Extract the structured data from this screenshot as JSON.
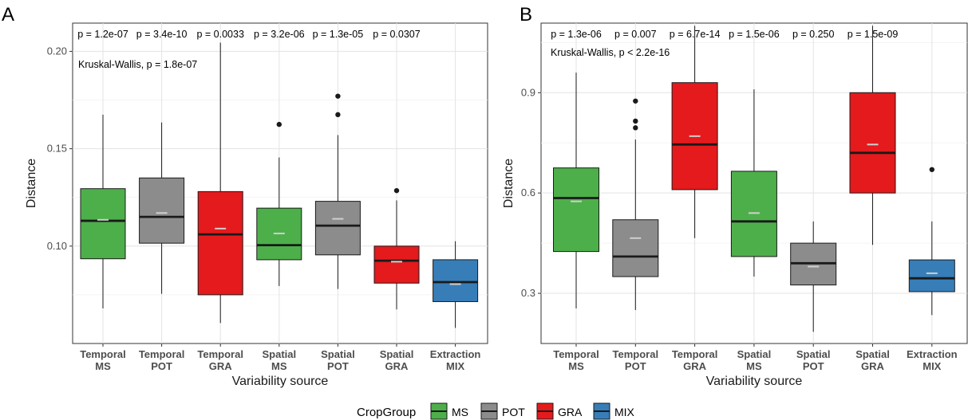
{
  "chart_data": [
    {
      "panel": "A",
      "type": "boxplot",
      "xlabel": "Variability source",
      "ylabel": "Distance",
      "ylim": [
        0.05,
        0.2145
      ],
      "yticks": [
        0.1,
        0.15,
        0.2
      ],
      "ytick_labels": [
        "0.10",
        "0.15",
        "0.20"
      ],
      "annotation": "Kruskal-Wallis, p = 1.8e-07",
      "categories": [
        {
          "line1": "Temporal",
          "line2": "MS",
          "group": "MS",
          "pvalue": "p = 1.2e-07",
          "whisker_low": 0.068,
          "q1": 0.0935,
          "median": 0.113,
          "q3": 0.1295,
          "whisker_high": 0.1675,
          "mean": 0.1135,
          "outliers": []
        },
        {
          "line1": "Temporal",
          "line2": "POT",
          "group": "POT",
          "pvalue": "p = 3.4e-10",
          "whisker_low": 0.0755,
          "q1": 0.1015,
          "median": 0.115,
          "q3": 0.135,
          "whisker_high": 0.1635,
          "mean": 0.117,
          "outliers": []
        },
        {
          "line1": "Temporal",
          "line2": "GRA",
          "group": "GRA",
          "pvalue": "p = 0.0033",
          "whisker_low": 0.0605,
          "q1": 0.075,
          "median": 0.106,
          "q3": 0.128,
          "whisker_high": 0.2045,
          "mean": 0.109,
          "outliers": []
        },
        {
          "line1": "Spatial",
          "line2": "MS",
          "group": "MS",
          "pvalue": "p = 3.2e-06",
          "whisker_low": 0.0795,
          "q1": 0.093,
          "median": 0.1005,
          "q3": 0.1195,
          "whisker_high": 0.1455,
          "mean": 0.1065,
          "outliers": [
            0.1625
          ]
        },
        {
          "line1": "Spatial",
          "line2": "POT",
          "group": "POT",
          "pvalue": "p = 1.3e-05",
          "whisker_low": 0.078,
          "q1": 0.0955,
          "median": 0.1105,
          "q3": 0.123,
          "whisker_high": 0.157,
          "mean": 0.114,
          "outliers": [
            0.1675,
            0.177
          ]
        },
        {
          "line1": "Spatial",
          "line2": "GRA",
          "group": "GRA",
          "pvalue": "p = 0.0307",
          "whisker_low": 0.0675,
          "q1": 0.081,
          "median": 0.0925,
          "q3": 0.1,
          "whisker_high": 0.1235,
          "mean": 0.092,
          "outliers": [
            0.1285
          ]
        },
        {
          "line1": "Extraction",
          "line2": "MIX",
          "group": "MIX",
          "pvalue": "",
          "whisker_low": 0.058,
          "q1": 0.0715,
          "median": 0.0815,
          "q3": 0.093,
          "whisker_high": 0.1025,
          "mean": 0.0805,
          "outliers": []
        }
      ]
    },
    {
      "panel": "B",
      "type": "boxplot",
      "xlabel": "Variability source",
      "ylabel": "Distance",
      "ylim": [
        0.15,
        1.108
      ],
      "yticks": [
        0.3,
        0.6,
        0.9
      ],
      "ytick_labels": [
        "0.3",
        "0.6",
        "0.9"
      ],
      "annotation": "Kruskal-Wallis, p < 2.2e-16",
      "categories": [
        {
          "line1": "Temporal",
          "line2": "MS",
          "group": "MS",
          "pvalue": "p = 1.3e-06",
          "whisker_low": 0.255,
          "q1": 0.425,
          "median": 0.585,
          "q3": 0.675,
          "whisker_high": 0.96,
          "mean": 0.575,
          "outliers": []
        },
        {
          "line1": "Temporal",
          "line2": "POT",
          "group": "POT",
          "pvalue": "p = 0.007",
          "whisker_low": 0.25,
          "q1": 0.35,
          "median": 0.41,
          "q3": 0.52,
          "whisker_high": 0.76,
          "mean": 0.465,
          "outliers": [
            0.795,
            0.815,
            0.875
          ]
        },
        {
          "line1": "Temporal",
          "line2": "GRA",
          "group": "GRA",
          "pvalue": "p = 6.7e-14",
          "whisker_low": 0.465,
          "q1": 0.61,
          "median": 0.745,
          "q3": 0.93,
          "whisker_high": 1.1,
          "mean": 0.77,
          "outliers": []
        },
        {
          "line1": "Spatial",
          "line2": "MS",
          "group": "MS",
          "pvalue": "p = 1.5e-06",
          "whisker_low": 0.35,
          "q1": 0.41,
          "median": 0.515,
          "q3": 0.665,
          "whisker_high": 0.91,
          "mean": 0.54,
          "outliers": []
        },
        {
          "line1": "Spatial",
          "line2": "POT",
          "group": "POT",
          "pvalue": "p = 0.250",
          "whisker_low": 0.185,
          "q1": 0.325,
          "median": 0.39,
          "q3": 0.45,
          "whisker_high": 0.515,
          "mean": 0.38,
          "outliers": []
        },
        {
          "line1": "Spatial",
          "line2": "GRA",
          "group": "GRA",
          "pvalue": "p = 1.5e-09",
          "whisker_low": 0.445,
          "q1": 0.6,
          "median": 0.72,
          "q3": 0.9,
          "whisker_high": 1.1,
          "mean": 0.745,
          "outliers": []
        },
        {
          "line1": "Extraction",
          "line2": "MIX",
          "group": "MIX",
          "pvalue": "",
          "whisker_low": 0.235,
          "q1": 0.305,
          "median": 0.345,
          "q3": 0.4,
          "whisker_high": 0.515,
          "mean": 0.36,
          "outliers": [
            0.67
          ]
        }
      ]
    }
  ],
  "legend": {
    "title": "CropGroup",
    "items": [
      {
        "name": "MS",
        "color": "#4daf4a"
      },
      {
        "name": "POT",
        "color": "#8c8c8c"
      },
      {
        "name": "GRA",
        "color": "#e41a1c"
      },
      {
        "name": "MIX",
        "color": "#377eb8"
      }
    ]
  },
  "colors": {
    "MS": "#4daf4a",
    "POT": "#8c8c8c",
    "GRA": "#e41a1c",
    "MIX": "#377eb8"
  }
}
